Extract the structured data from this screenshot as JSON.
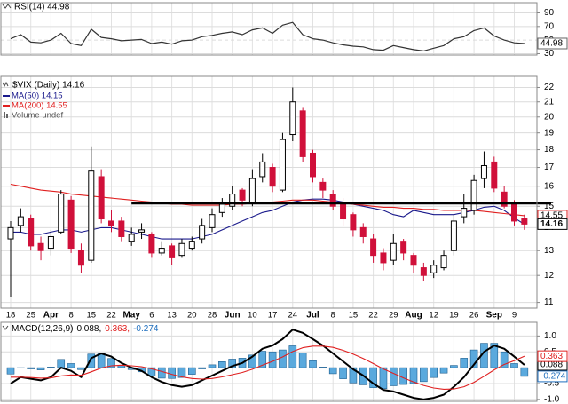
{
  "chart_data": [
    {
      "type": "line",
      "title": "RSI(14) 44.98",
      "color": "#333333",
      "values": [
        52,
        58,
        47,
        46,
        50,
        60,
        45,
        42,
        66,
        54,
        52,
        49,
        50,
        51,
        45,
        47,
        44,
        49,
        50,
        55,
        57,
        60,
        62,
        58,
        65,
        68,
        60,
        72,
        76,
        58,
        52,
        50,
        46,
        43,
        41,
        40,
        36,
        35,
        42,
        39,
        36,
        34,
        38,
        42,
        52,
        55,
        64,
        68,
        56,
        50,
        46,
        44.98
      ],
      "ylim": [
        28,
        105
      ],
      "yticks": [
        30,
        50,
        70,
        90
      ],
      "grid": true
    },
    {
      "type": "candlestick",
      "title": "$VIX (Daily) 14.16",
      "volume_label": "Volume undef",
      "log_scale": true,
      "grid": true,
      "categories": [
        "18",
        null,
        "25",
        null,
        "Apr",
        null,
        "8",
        null,
        "15",
        null,
        "22",
        null,
        "May",
        null,
        "6",
        null,
        "13",
        null,
        "20",
        null,
        "28",
        null,
        "Jun",
        null,
        "10",
        null,
        "17",
        null,
        "24",
        null,
        "Jul",
        null,
        "8",
        null,
        "15",
        null,
        "22",
        null,
        "29",
        null,
        "Aug",
        null,
        "12",
        null,
        "19",
        null,
        "26",
        null,
        "Sep",
        null,
        "9",
        null
      ],
      "open": [
        13.5,
        14.1,
        14.4,
        13.3,
        13.1,
        13.8,
        15.3,
        13.0,
        12.6,
        16.5,
        14.3,
        14.3,
        13.4,
        13.8,
        13.7,
        12.9,
        13.2,
        12.8,
        13.1,
        13.5,
        14.0,
        14.7,
        15.0,
        15.8,
        15.2,
        16.5,
        17.0,
        15.8,
        18.9,
        20.4,
        17.8,
        16.2,
        15.6,
        15.2,
        14.6,
        14.0,
        13.5,
        12.9,
        12.6,
        13.4,
        12.8,
        12.3,
        12.1,
        12.3,
        13.0,
        14.5,
        14.8,
        16.4,
        17.3,
        15.7,
        15.2,
        14.4
      ],
      "high": [
        14.3,
        14.9,
        14.6,
        13.6,
        13.9,
        15.8,
        15.5,
        13.3,
        18.2,
        16.9,
        14.8,
        14.5,
        14.0,
        14.2,
        13.8,
        13.4,
        13.3,
        13.5,
        13.6,
        14.4,
        14.9,
        15.4,
        16.0,
        15.9,
        16.9,
        17.8,
        17.2,
        19.0,
        22.0,
        20.6,
        18.0,
        16.4,
        15.8,
        15.4,
        14.7,
        14.2,
        13.7,
        13.1,
        13.7,
        13.5,
        12.9,
        12.5,
        12.6,
        13.0,
        14.6,
        15.6,
        16.6,
        17.9,
        17.6,
        16.0,
        15.3,
        14.6
      ],
      "low": [
        11.2,
        13.8,
        13.0,
        12.6,
        12.8,
        13.7,
        12.9,
        12.1,
        12.5,
        14.2,
        13.8,
        13.4,
        13.2,
        13.5,
        12.7,
        12.8,
        12.4,
        12.7,
        13.0,
        13.3,
        13.8,
        14.5,
        14.8,
        15.0,
        15.0,
        16.2,
        15.7,
        15.7,
        18.5,
        17.3,
        16.2,
        15.4,
        14.8,
        14.1,
        13.6,
        13.3,
        12.5,
        12.2,
        12.4,
        12.6,
        12.1,
        11.8,
        11.9,
        12.2,
        12.8,
        14.2,
        14.6,
        15.9,
        15.7,
        14.9,
        14.1,
        13.9
      ],
      "close": [
        14.0,
        14.5,
        13.2,
        13.0,
        13.6,
        15.6,
        13.1,
        12.4,
        16.8,
        14.4,
        14.1,
        13.6,
        13.7,
        13.9,
        12.9,
        13.1,
        12.7,
        13.3,
        13.4,
        14.1,
        14.6,
        15.1,
        15.6,
        15.3,
        16.4,
        17.3,
        16.0,
        18.6,
        21.0,
        17.6,
        16.5,
        15.8,
        15.0,
        14.4,
        13.9,
        13.6,
        12.8,
        12.5,
        13.3,
        12.9,
        12.4,
        12.0,
        12.4,
        12.8,
        14.3,
        14.9,
        16.3,
        17.1,
        15.9,
        15.0,
        14.3,
        14.16
      ],
      "series": [
        {
          "name": "MA(50) 14.15",
          "color": "#1a1a8c",
          "values": [
            13.8,
            13.8,
            13.7,
            13.7,
            13.8,
            13.9,
            13.9,
            13.8,
            13.9,
            14.0,
            14.0,
            13.9,
            13.8,
            13.7,
            13.6,
            13.5,
            13.5,
            13.5,
            13.5,
            13.6,
            13.7,
            13.9,
            14.1,
            14.3,
            14.5,
            14.7,
            14.8,
            15.0,
            15.2,
            15.3,
            15.35,
            15.35,
            15.3,
            15.2,
            15.1,
            15.0,
            14.9,
            14.8,
            14.6,
            14.5,
            14.8,
            14.7,
            14.6,
            14.6,
            14.6,
            14.7,
            14.8,
            14.95,
            15.0,
            14.8,
            14.45,
            14.15
          ]
        },
        {
          "name": "MA(200) 14.55",
          "color": "#e02020",
          "values": [
            16.1,
            16.0,
            15.9,
            15.8,
            15.75,
            15.7,
            15.6,
            15.55,
            15.5,
            15.45,
            15.4,
            15.35,
            15.3,
            15.25,
            15.2,
            15.15,
            15.1,
            15.1,
            15.05,
            15.05,
            15.05,
            15.05,
            15.1,
            15.1,
            15.15,
            15.2,
            15.2,
            15.25,
            15.3,
            15.3,
            15.3,
            15.25,
            15.2,
            15.15,
            15.1,
            15.05,
            15.0,
            14.95,
            14.95,
            14.9,
            14.9,
            14.85,
            14.85,
            14.8,
            14.8,
            14.8,
            14.8,
            14.75,
            14.7,
            14.65,
            14.6,
            14.55
          ]
        }
      ],
      "trendline": {
        "value": 15.15,
        "start": 12
      },
      "ylim": [
        10.8,
        22.8
      ],
      "yticks": [
        11,
        12,
        13,
        14,
        15,
        16,
        17,
        18,
        19,
        20,
        21,
        22
      ]
    },
    {
      "type": "macd",
      "title": "MACD(12,26,9)",
      "grid": true,
      "series": [
        {
          "name": "-0.274",
          "color": "#1f6fbf",
          "type": "bar",
          "values": [
            -0.2,
            0.0,
            -0.04,
            -0.07,
            0.02,
            0.26,
            0.13,
            -0.06,
            0.43,
            0.46,
            0.29,
            0.07,
            -0.06,
            -0.13,
            -0.26,
            -0.33,
            -0.34,
            -0.31,
            -0.21,
            -0.04,
            0.09,
            0.19,
            0.27,
            0.3,
            0.4,
            0.52,
            0.5,
            0.56,
            0.69,
            0.47,
            0.22,
            0.02,
            -0.19,
            -0.35,
            -0.48,
            -0.54,
            -0.63,
            -0.66,
            -0.57,
            -0.53,
            -0.5,
            -0.44,
            -0.31,
            -0.17,
            0.07,
            0.3,
            0.56,
            0.77,
            0.77,
            0.5,
            0.13,
            -0.274
          ]
        },
        {
          "name": "0.088,",
          "color": "#000000",
          "type": "line",
          "values": [
            -0.5,
            -0.3,
            -0.35,
            -0.4,
            -0.3,
            0.0,
            -0.1,
            -0.3,
            0.3,
            0.45,
            0.35,
            0.15,
            0.0,
            -0.1,
            -0.3,
            -0.45,
            -0.55,
            -0.6,
            -0.55,
            -0.4,
            -0.25,
            -0.1,
            0.05,
            0.15,
            0.35,
            0.6,
            0.7,
            0.9,
            1.2,
            1.1,
            0.9,
            0.7,
            0.45,
            0.2,
            -0.05,
            -0.25,
            -0.5,
            -0.7,
            -0.75,
            -0.85,
            -0.95,
            -1.0,
            -0.95,
            -0.85,
            -0.6,
            -0.3,
            0.1,
            0.5,
            0.7,
            0.6,
            0.35,
            0.088
          ]
        },
        {
          "name": "0.363,",
          "color": "#e02020",
          "type": "line",
          "values": [
            -0.3,
            -0.3,
            -0.31,
            -0.33,
            -0.32,
            -0.26,
            -0.23,
            -0.24,
            -0.13,
            -0.01,
            0.06,
            0.08,
            0.06,
            0.03,
            -0.04,
            -0.12,
            -0.21,
            -0.29,
            -0.34,
            -0.36,
            -0.34,
            -0.29,
            -0.22,
            -0.15,
            -0.05,
            0.08,
            0.2,
            0.34,
            0.51,
            0.63,
            0.68,
            0.68,
            0.64,
            0.55,
            0.43,
            0.29,
            0.13,
            -0.04,
            -0.18,
            -0.32,
            -0.45,
            -0.56,
            -0.64,
            -0.68,
            -0.67,
            -0.6,
            -0.46,
            -0.27,
            -0.07,
            0.1,
            0.22,
            0.363
          ]
        }
      ],
      "ylim": [
        -1.06,
        1.43
      ],
      "yticks": [
        {
          "value": 1,
          "label": "1.0"
        },
        0.5,
        -0.5,
        {
          "value": -1,
          "label": "-1.0"
        }
      ]
    }
  ]
}
